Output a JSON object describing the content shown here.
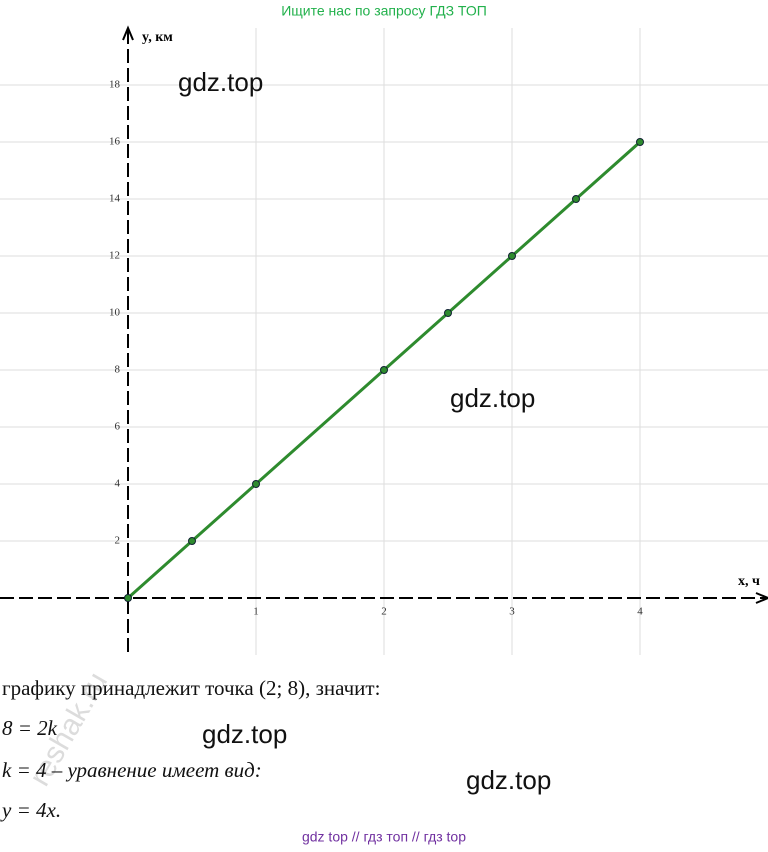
{
  "header": "Ищите нас по запросу ГДЗ ТОП",
  "chart_data": {
    "type": "line",
    "x_label": "x, ч",
    "y_label": "y, км",
    "x": [
      0,
      0.5,
      1,
      2,
      2.5,
      3,
      3.5,
      4
    ],
    "series": [
      {
        "color": "#2e8b2e",
        "values": [
          0,
          2,
          4,
          8,
          10,
          12,
          14,
          16
        ]
      }
    ],
    "xlim": [
      -1,
      5
    ],
    "ylim": [
      -2,
      20
    ],
    "xticks": [
      1,
      2,
      3,
      4
    ],
    "yticks": [
      2,
      4,
      6,
      8,
      10,
      12,
      14,
      16,
      18
    ],
    "grid": true
  },
  "watermarks": [
    "gdz.top",
    "gdz.top",
    "gdz.top",
    "gdz.top",
    "reshak.ru"
  ],
  "lines": [
    "графику принадлежит точка  (2; 8), значит:",
    "8 = 2k",
    "k = 4 – уравнение имеет вид:",
    "y = 4x."
  ],
  "footer": "gdz top  //  гдз топ  //  гдз top"
}
